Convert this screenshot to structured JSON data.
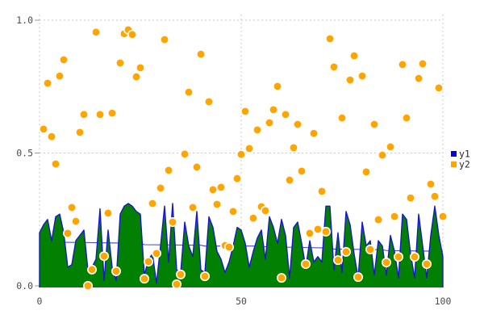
{
  "chart_data": {
    "type": "mixed",
    "title": "",
    "xlabel": "",
    "ylabel": "",
    "xlim": [
      0,
      100
    ],
    "ylim": [
      0,
      1
    ],
    "grid": "dashed",
    "background": "#ffffff",
    "tick_label_color": "#4a4a52",
    "x_ticks": [
      {
        "v": 0,
        "label": "0"
      },
      {
        "v": 50,
        "label": "50"
      },
      {
        "v": 100,
        "label": "100"
      }
    ],
    "y_ticks": [
      {
        "v": 0,
        "label": "0.0"
      },
      {
        "v": 0.5,
        "label": "0.5"
      },
      {
        "v": 1,
        "label": "1.0"
      }
    ],
    "series": [
      {
        "name": "y1",
        "type": "area",
        "fill_color": "#028002",
        "line_color": "#1818c8",
        "x_start": 0,
        "x_step": 1,
        "values": [
          0.2,
          0.23,
          0.25,
          0.17,
          0.26,
          0.27,
          0.2,
          0.07,
          0.08,
          0.17,
          0.19,
          0.21,
          0.06,
          0.07,
          0.1,
          0.29,
          0.02,
          0.21,
          0.07,
          0.02,
          0.27,
          0.3,
          0.31,
          0.3,
          0.28,
          0.27,
          0.04,
          0.1,
          0.12,
          0.01,
          0.15,
          0.3,
          0.09,
          0.31,
          0.06,
          0.05,
          0.24,
          0.15,
          0.11,
          0.28,
          0.06,
          0.05,
          0.26,
          0.22,
          0.13,
          0.1,
          0.05,
          0.09,
          0.15,
          0.22,
          0.21,
          0.16,
          0.07,
          0.13,
          0.18,
          0.21,
          0.1,
          0.26,
          0.22,
          0.16,
          0.25,
          0.19,
          0.03,
          0.22,
          0.24,
          0.16,
          0.07,
          0.17,
          0.09,
          0.11,
          0.09,
          0.3,
          0.3,
          0.06,
          0.2,
          0.05,
          0.28,
          0.23,
          0.12,
          0.03,
          0.24,
          0.15,
          0.17,
          0.04,
          0.17,
          0.15,
          0.04,
          0.19,
          0.13,
          0.03,
          0.27,
          0.25,
          0.12,
          0.03,
          0.27,
          0.15,
          0.03,
          0.19,
          0.3,
          0.19,
          0.11
        ]
      },
      {
        "name": "y2",
        "type": "scatter",
        "color": "#ffa500",
        "marker": "circle",
        "marker_edge_color": "#ffffff",
        "points": [
          [
            1,
            0.59
          ],
          [
            2,
            0.763
          ],
          [
            3,
            0.562
          ],
          [
            4,
            0.459
          ],
          [
            5,
            0.79
          ],
          [
            6,
            0.851
          ],
          [
            7,
            0.198
          ],
          [
            8,
            0.295
          ],
          [
            9,
            0.243
          ],
          [
            10,
            0.578
          ],
          [
            11,
            0.645
          ],
          [
            12,
            0.0
          ],
          [
            13,
            0.061
          ],
          [
            14,
            0.955
          ],
          [
            15,
            0.645
          ],
          [
            16,
            0.112
          ],
          [
            17,
            0.274
          ],
          [
            18,
            0.65
          ],
          [
            19,
            0.055
          ],
          [
            20,
            0.839
          ],
          [
            21,
            0.949
          ],
          [
            22,
            0.964
          ],
          [
            23,
            0.946
          ],
          [
            24,
            0.787
          ],
          [
            25,
            0.821
          ],
          [
            26,
            0.027
          ],
          [
            27,
            0.091
          ],
          [
            28,
            0.31
          ],
          [
            29,
            0.122
          ],
          [
            30,
            0.368
          ],
          [
            31,
            0.927
          ],
          [
            32,
            0.435
          ],
          [
            33,
            0.24
          ],
          [
            34,
            0.006
          ],
          [
            35,
            0.043
          ],
          [
            36,
            0.496
          ],
          [
            37,
            0.729
          ],
          [
            38,
            0.295
          ],
          [
            39,
            0.447
          ],
          [
            40,
            0.872
          ],
          [
            41,
            0.036
          ],
          [
            42,
            0.693
          ],
          [
            43,
            0.362
          ],
          [
            44,
            0.307
          ],
          [
            45,
            0.371
          ],
          [
            46,
            0.152
          ],
          [
            47,
            0.146
          ],
          [
            48,
            0.28
          ],
          [
            49,
            0.404
          ],
          [
            50,
            0.495
          ],
          [
            51,
            0.657
          ],
          [
            52,
            0.517
          ],
          [
            53,
            0.255
          ],
          [
            54,
            0.587
          ],
          [
            55,
            0.298
          ],
          [
            56,
            0.283
          ],
          [
            57,
            0.614
          ],
          [
            58,
            0.663
          ],
          [
            59,
            0.751
          ],
          [
            60,
            0.03
          ],
          [
            61,
            0.645
          ],
          [
            62,
            0.398
          ],
          [
            63,
            0.52
          ],
          [
            64,
            0.608
          ],
          [
            65,
            0.432
          ],
          [
            66,
            0.082
          ],
          [
            67,
            0.198
          ],
          [
            68,
            0.574
          ],
          [
            69,
            0.213
          ],
          [
            70,
            0.356
          ],
          [
            71,
            0.204
          ],
          [
            72,
            0.93
          ],
          [
            73,
            0.824
          ],
          [
            74,
            0.097
          ],
          [
            75,
            0.632
          ],
          [
            76,
            0.128
          ],
          [
            77,
            0.775
          ],
          [
            78,
            0.866
          ],
          [
            79,
            0.033
          ],
          [
            80,
            0.79
          ],
          [
            81,
            0.429
          ],
          [
            82,
            0.137
          ],
          [
            83,
            0.608
          ],
          [
            84,
            0.249
          ],
          [
            85,
            0.492
          ],
          [
            86,
            0.088
          ],
          [
            87,
            0.523
          ],
          [
            88,
            0.261
          ],
          [
            89,
            0.109
          ],
          [
            90,
            0.833
          ],
          [
            91,
            0.632
          ],
          [
            92,
            0.331
          ],
          [
            93,
            0.109
          ],
          [
            94,
            0.781
          ],
          [
            95,
            0.836
          ],
          [
            96,
            0.082
          ],
          [
            97,
            0.383
          ],
          [
            98,
            0.337
          ],
          [
            99,
            0.745
          ],
          [
            100,
            0.261
          ]
        ]
      }
    ],
    "trend_line": {
      "series": "y1",
      "color": "#4646c8",
      "points": [
        [
          0,
          0.165
        ],
        [
          12,
          0.163
        ],
        [
          25,
          0.16
        ],
        [
          26,
          0.155
        ],
        [
          40,
          0.153
        ],
        [
          41,
          0.15
        ],
        [
          55,
          0.15
        ],
        [
          56,
          0.147
        ],
        [
          70,
          0.143
        ],
        [
          71,
          0.139
        ],
        [
          85,
          0.136
        ],
        [
          86,
          0.133
        ],
        [
          100,
          0.13
        ]
      ]
    },
    "legend": {
      "position": "center-right",
      "entries": [
        {
          "label": "y1",
          "color": "#0000ee"
        },
        {
          "label": "y2",
          "color": "#ffa500"
        }
      ]
    }
  }
}
